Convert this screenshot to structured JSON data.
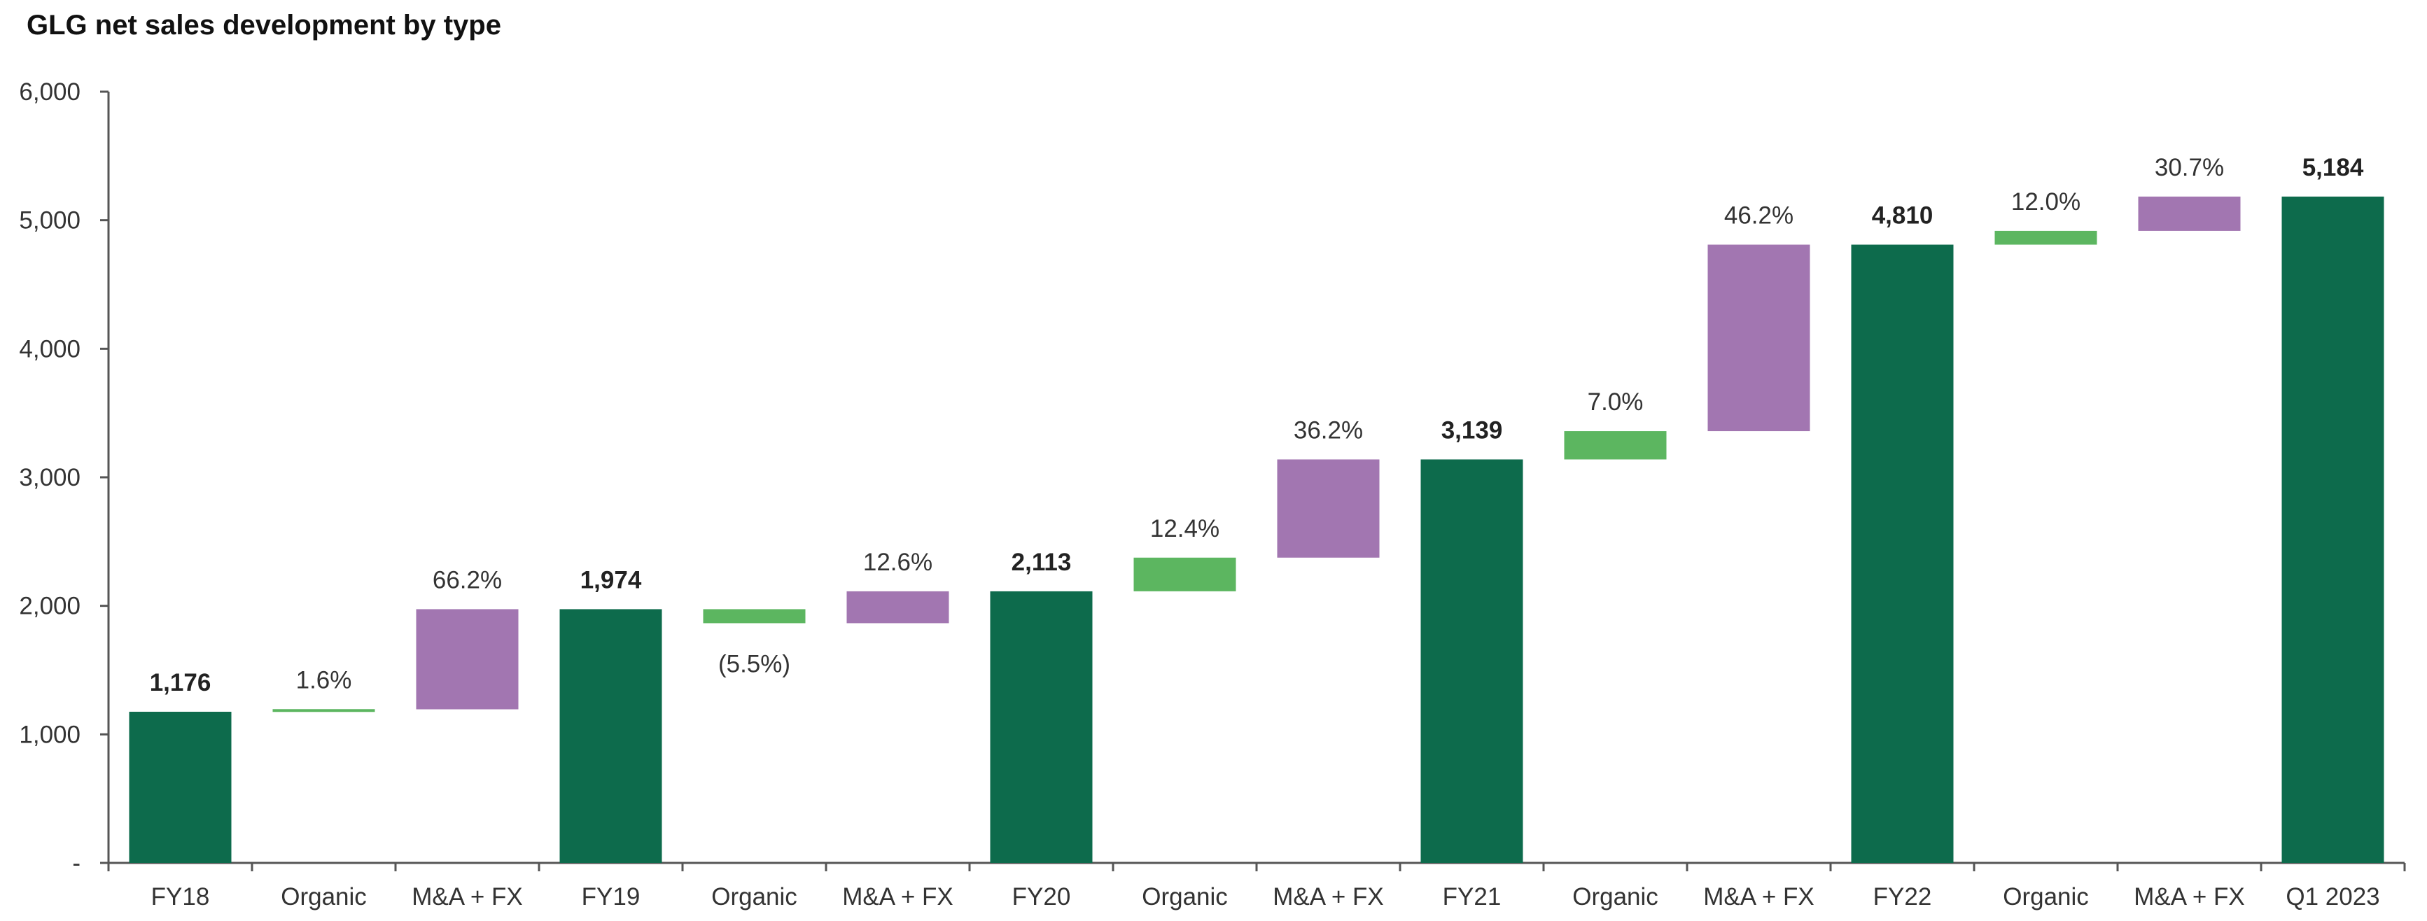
{
  "chart_data": {
    "type": "bar",
    "subtype": "waterfall",
    "title": "GLG net sales development by type",
    "xlabel": "",
    "ylabel": "",
    "ylim": [
      0,
      6000
    ],
    "yticks": [
      {
        "value": 0,
        "label": "-"
      },
      {
        "value": 1000,
        "label": "1,000"
      },
      {
        "value": 2000,
        "label": "2,000"
      },
      {
        "value": 3000,
        "label": "3,000"
      },
      {
        "value": 4000,
        "label": "4,000"
      },
      {
        "value": 5000,
        "label": "5,000"
      },
      {
        "value": 6000,
        "label": "6,000"
      }
    ],
    "grid": false,
    "legend": "none",
    "colors": {
      "total": "#0d6b4c",
      "organic": "#5cb660",
      "ma_fx": "#a276b1",
      "axis": "#555555"
    },
    "bars": [
      {
        "category": "FY18",
        "kind": "total",
        "start": 0,
        "end": 1176,
        "label": "1,176"
      },
      {
        "category": "Organic",
        "kind": "organic",
        "start": 1176,
        "end": 1195,
        "label": "1.6%"
      },
      {
        "category": "M&A + FX",
        "kind": "ma_fx",
        "start": 1195,
        "end": 1974,
        "label": "66.2%"
      },
      {
        "category": "FY19",
        "kind": "total",
        "start": 0,
        "end": 1974,
        "label": "1,974"
      },
      {
        "category": "Organic",
        "kind": "organic",
        "start": 1974,
        "end": 1865,
        "label": "(5.5%)"
      },
      {
        "category": "M&A + FX",
        "kind": "ma_fx",
        "start": 1865,
        "end": 2113,
        "label": "12.6%"
      },
      {
        "category": "FY20",
        "kind": "total",
        "start": 0,
        "end": 2113,
        "label": "2,113"
      },
      {
        "category": "Organic",
        "kind": "organic",
        "start": 2113,
        "end": 2375,
        "label": "12.4%"
      },
      {
        "category": "M&A + FX",
        "kind": "ma_fx",
        "start": 2375,
        "end": 3139,
        "label": "36.2%"
      },
      {
        "category": "FY21",
        "kind": "total",
        "start": 0,
        "end": 3139,
        "label": "3,139"
      },
      {
        "category": "Organic",
        "kind": "organic",
        "start": 3139,
        "end": 3359,
        "label": "7.0%"
      },
      {
        "category": "M&A + FX",
        "kind": "ma_fx",
        "start": 3359,
        "end": 4810,
        "label": "46.2%"
      },
      {
        "category": "FY22",
        "kind": "total",
        "start": 0,
        "end": 4810,
        "label": "4,810"
      },
      {
        "category": "Organic",
        "kind": "organic",
        "start": 4810,
        "end": 4917,
        "label": "12.0%"
      },
      {
        "category": "M&A + FX",
        "kind": "ma_fx",
        "start": 4917,
        "end": 5184,
        "label": "30.7%"
      },
      {
        "category": "Q1 2023",
        "kind": "total",
        "start": 0,
        "end": 5184,
        "label": "5,184"
      }
    ]
  }
}
